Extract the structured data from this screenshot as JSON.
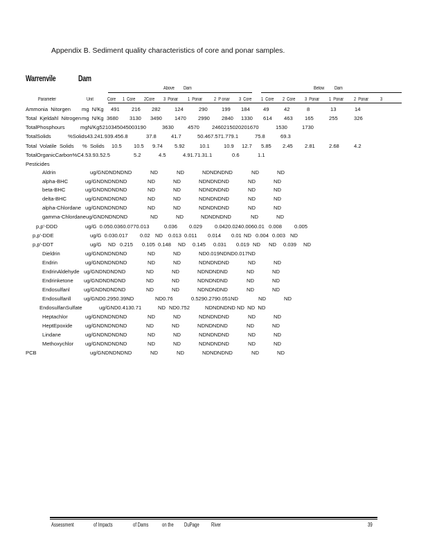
{
  "title": "Appendix B.  Sediment  quality  characteristics of core and ponar samples.",
  "site": {
    "name": "Warrenvile",
    "structure": "Dam"
  },
  "groups": {
    "above": [
      "Above",
      "Dam"
    ],
    "below": [
      "Below",
      "Dam"
    ]
  },
  "header": [
    "Parameter",
    "Unit",
    "Core",
    "1  Core",
    "2Core",
    "3  Ponar",
    "1  Ponar",
    "2  P onar",
    "3  Core",
    "1  Core",
    "2  Core",
    "3  Ponar",
    "1  Ponar",
    "2  Ponar",
    "3"
  ],
  "rows": [
    [
      "Ammonia  Nitorgen",
      "mg  N/Kg",
      "491",
      "216",
      "282",
      "124",
      "290",
      "199",
      "184",
      "49",
      "42",
      "8",
      "13",
      "14"
    ],
    [
      "Total  Kjeldahl  Nitrogen",
      "mg  N/Kg",
      "3680",
      "3130",
      "3490",
      "1470",
      "2990",
      "2840",
      "1330",
      "614",
      "463",
      "165",
      "255",
      "326"
    ],
    [
      "TotalPhosphours",
      "mgN/Kg5210345045003190",
      "3630",
      "4570",
      "2460215020201670",
      "1530",
      "1730"
    ],
    [
      "TotalSolids",
      "%Solids43.241.939.456.8",
      "37.8",
      "41.7",
      "50.467.571.779.1",
      "75.8",
      "69.3"
    ],
    [
      "Total  Volatile  Solids",
      "%  Solids",
      "10.5",
      "10.5",
      "9.74",
      "5.92",
      "10.1",
      "10.9",
      "12.7",
      "5.85",
      "2.45",
      "2.81",
      "2.68",
      "4.2"
    ],
    [
      "TotalOrganicCarbon%C4.53.93.52.5",
      "5.2",
      "4.5",
      "4.91.71.31.1",
      "0.6",
      "1.1"
    ],
    [
      "Pesticides"
    ],
    [
      "Aldrin",
      "ug/GNDNDNDND",
      "ND",
      "ND",
      "NDNDNDND",
      "ND",
      "ND"
    ],
    [
      "alpha-BHC",
      "ug/GNDNDNDND",
      "ND",
      "ND",
      "NDNDNDND",
      "ND",
      "ND"
    ],
    [
      "beta-BHC",
      "ug/GNDNDNDND",
      "ND",
      "ND",
      "NDNDNDND",
      "ND",
      "ND"
    ],
    [
      "delta-BHC",
      "ug/GNDNDNDND",
      "ND",
      "ND",
      "NDNDNDND",
      "ND",
      "ND"
    ],
    [
      "alpha-Chlordane",
      "ug/GNDNDNDND",
      "ND",
      "ND",
      "NDNDNDND",
      "ND",
      "ND"
    ],
    [
      "gamma-Chlordaneug/GNDNDNDND",
      "ND",
      "ND",
      "NDNDNDND",
      "ND",
      "ND"
    ],
    [
      "p,p'-DDD",
      "ug/G  0.050.0360.0770.013",
      "0.036",
      "0.029",
      "0.0420.0240.0060.01",
      "0.008",
      "0.005"
    ],
    [
      "p,p'-DDE",
      "ug/G  0.030.017",
      "0.02",
      "ND",
      "0.013",
      "0.011",
      "0.014",
      "0.01",
      "ND",
      "0.004",
      "0.003",
      "ND"
    ],
    [
      "p,p'-DDT",
      "ug/G",
      "ND",
      "0.215",
      "0.105",
      "0.148",
      "ND",
      "0.145",
      "0.031",
      "0.019",
      "ND",
      "ND",
      "0.039",
      "ND"
    ],
    [
      "Dieldrin",
      "ug/GNDNDNDND",
      "ND",
      "ND",
      "ND0.019NDND0.017ND"
    ],
    [
      "Endrin",
      "ug/GNDNDNDND",
      "ND",
      "ND",
      "NDNDNDND",
      "ND",
      "ND"
    ],
    [
      "EndrinAldehyde",
      "ug/GNDNDNDND",
      "ND",
      "ND",
      "NDNDNDND",
      "ND",
      "ND"
    ],
    [
      "Endrinketone",
      "ug/GNDNDNDND",
      "ND",
      "ND",
      "NDNDNDND",
      "ND",
      "ND"
    ],
    [
      "Endosulfanl",
      "ug/GNDNDNDND",
      "ND",
      "ND",
      "NDNDNDND",
      "ND",
      "ND"
    ],
    [
      "Endosulfanll",
      "ug/GND0.2950.39ND",
      "ND0.76",
      "0.5290.2790.051ND",
      "ND",
      "ND"
    ],
    [
      "EndosulfanSulfate",
      "ug/GND0.4130.71",
      "ND",
      "ND0.752",
      "NDNDNDND ND  ND  ND"
    ],
    [
      "Heptachlor",
      "ug/GNDNDNDND",
      "ND",
      "ND",
      "NDNDNDND",
      "ND",
      "ND"
    ],
    [
      "HeptEpoxide",
      "ug/GNDNDNDND",
      "ND",
      "ND",
      "NDNDNDND",
      "ND",
      "ND"
    ],
    [
      "Lindane",
      "ug/GNDNDNDND",
      "ND",
      "ND",
      "NDNDNDND",
      "ND",
      "ND"
    ],
    [
      "Methoxychlor",
      "ug/GNDNDNDND",
      "ND",
      "ND",
      "NDNDNDND",
      "ND",
      "ND"
    ],
    [
      "PCB",
      "ug/GNDNDNDND",
      "ND",
      "ND",
      "NDNDNDND",
      "ND",
      "ND"
    ]
  ],
  "footer": {
    "words": [
      "Assessment",
      "of  Impacts",
      "of  Dams",
      "on  the",
      "DuPage",
      "River"
    ],
    "page": "39"
  }
}
